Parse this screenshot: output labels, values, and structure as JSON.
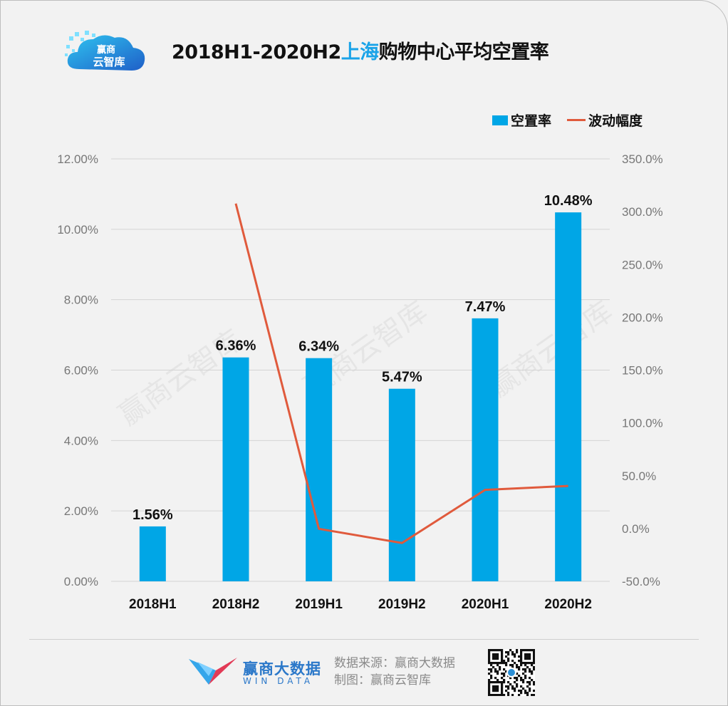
{
  "header": {
    "logo_text_top": "赢商",
    "logo_text_bottom": "云智库",
    "title_prefix": "2018H1-2020H2",
    "title_highlight": "上海",
    "title_suffix": "购物中心平均空置率"
  },
  "colors": {
    "bar": "#00a6e6",
    "line": "#e05a3c",
    "title_highlight": "#1aa3e8"
  },
  "chart_data": {
    "type": "bar",
    "categories": [
      "2018H1",
      "2018H2",
      "2019H1",
      "2019H2",
      "2020H1",
      "2020H2"
    ],
    "series": [
      {
        "name": "空置率",
        "type": "bar",
        "axis": "left",
        "values": [
          1.56,
          6.36,
          6.34,
          5.47,
          7.47,
          10.48
        ],
        "labels": [
          "1.56%",
          "6.36%",
          "6.34%",
          "5.47%",
          "7.47%",
          "10.48%"
        ]
      },
      {
        "name": "波动幅度",
        "type": "line",
        "axis": "right",
        "values": [
          null,
          307.7,
          -0.3,
          -13.7,
          36.6,
          40.3
        ]
      }
    ],
    "y_left": {
      "ylim": [
        0,
        12
      ],
      "ticks": [
        0,
        2,
        4,
        6,
        8,
        10,
        12
      ],
      "tick_labels": [
        "0.00%",
        "2.00%",
        "4.00%",
        "6.00%",
        "8.00%",
        "10.00%",
        "12.00%"
      ]
    },
    "y_right": {
      "ylim": [
        -50,
        350
      ],
      "ticks": [
        -50,
        0,
        50,
        100,
        150,
        200,
        250,
        300,
        350
      ],
      "tick_labels": [
        "-50.0%",
        "0.0%",
        "50.0%",
        "100.0%",
        "150.0%",
        "200.0%",
        "250.0%",
        "300.0%",
        "350.0%"
      ]
    },
    "grid": true,
    "legend": "top-right",
    "watermark": "赢商云智库"
  },
  "footer": {
    "brand_cn": "赢商大数据",
    "brand_en": "WIN DATA",
    "source": "数据来源：赢商大数据",
    "made_by": "制图：赢商云智库"
  }
}
